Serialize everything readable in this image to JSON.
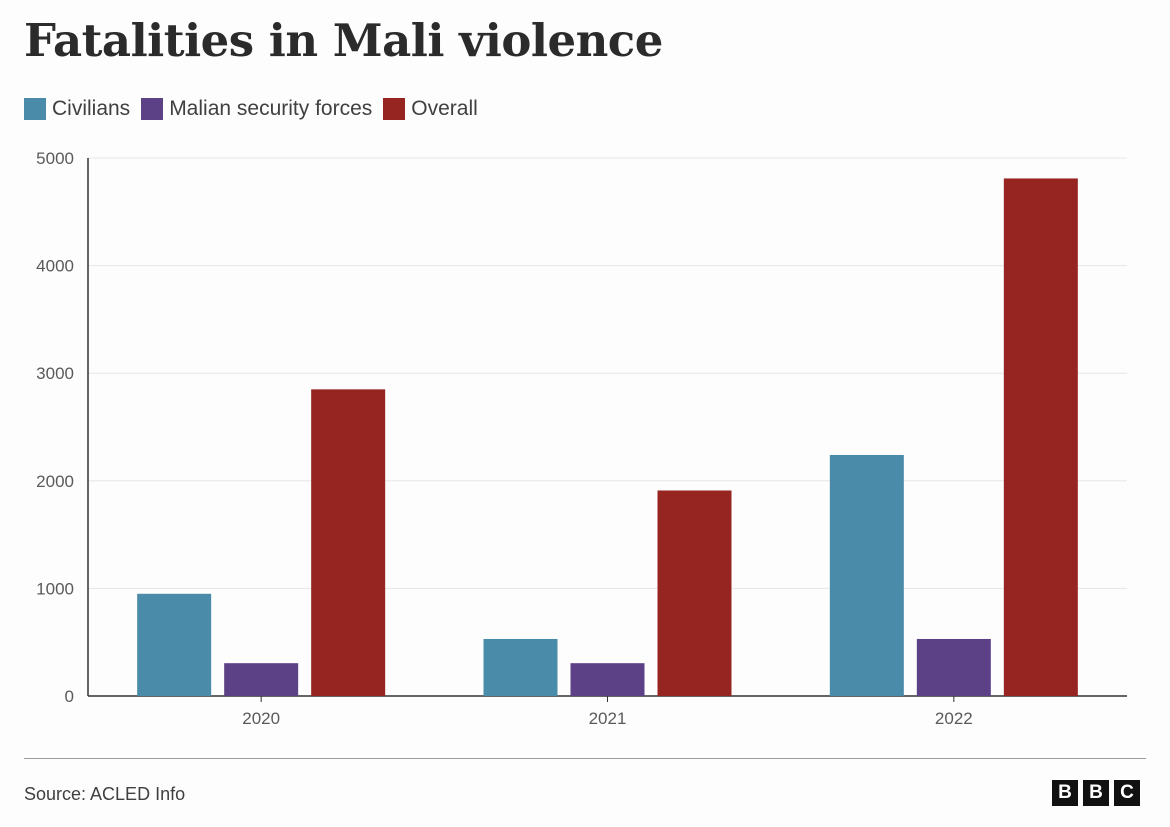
{
  "chart_data": {
    "type": "bar",
    "title": "Fatalities in Mali violence",
    "categories": [
      "2020",
      "2021",
      "2022"
    ],
    "series": [
      {
        "name": "Civilians",
        "color": "#4a8ba9",
        "values": [
          950,
          530,
          2240
        ]
      },
      {
        "name": "Malian security forces",
        "color": "#5d4187",
        "values": [
          305,
          305,
          530
        ]
      },
      {
        "name": "Overall",
        "color": "#962522",
        "values": [
          2850,
          1910,
          4810
        ]
      }
    ],
    "yticks": [
      0,
      1000,
      2000,
      3000,
      4000,
      5000
    ],
    "ylim": [
      0,
      5000
    ],
    "xlabel": "",
    "ylabel": "",
    "grid": true,
    "legend": "top-left"
  },
  "footer": {
    "source": "Source: ACLED Info",
    "logo_letters": [
      "B",
      "B",
      "C"
    ]
  }
}
